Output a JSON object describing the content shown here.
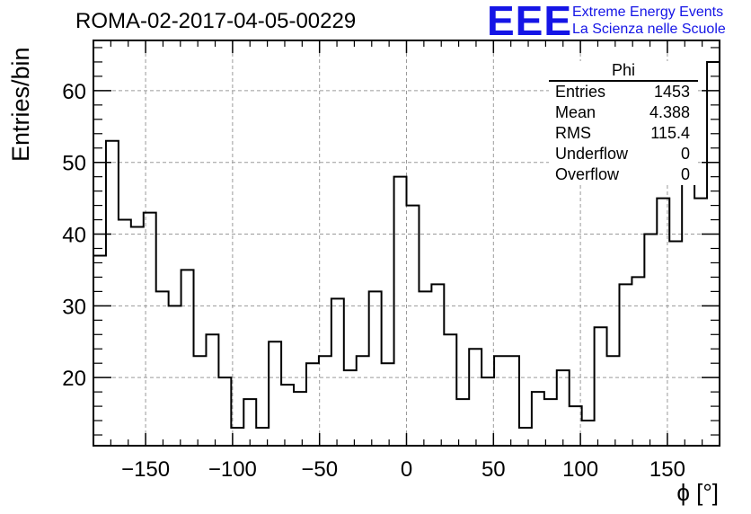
{
  "header": {
    "title": "ROMA-02-2017-04-05-00229",
    "logo_text": "EEE",
    "logo_line1": "Extreme Energy Events",
    "logo_line2": "La Scienza nelle Scuole",
    "accent_color": "#1515e6"
  },
  "stats": {
    "name": "Phi",
    "rows": [
      {
        "label": "Entries",
        "value": "1453"
      },
      {
        "label": "Mean",
        "value": "4.388"
      },
      {
        "label": "RMS",
        "value": "115.4"
      },
      {
        "label": "Underflow",
        "value": "0"
      },
      {
        "label": "Overflow",
        "value": "0"
      }
    ]
  },
  "chart_data": {
    "type": "histogram",
    "title": "ROMA-02-2017-04-05-00229",
    "xlabel": "ϕ [°]",
    "ylabel": "Entries/bin",
    "xlim": [
      -180,
      180
    ],
    "ylim": [
      10.5,
      67
    ],
    "bin_width": 7.2,
    "x_ticks": [
      -150,
      -100,
      -50,
      0,
      50,
      100,
      150
    ],
    "x_tick_labels": [
      "−150",
      "−100",
      "−50",
      "0",
      "50",
      "100",
      "150"
    ],
    "y_ticks": [
      20,
      30,
      40,
      50,
      60
    ],
    "grid": true,
    "values": [
      37,
      53,
      42,
      41,
      43,
      32,
      30,
      35,
      23,
      26,
      20,
      13,
      17,
      13,
      25,
      19,
      18,
      22,
      23,
      31,
      21,
      23,
      32,
      22,
      48,
      44,
      32,
      33,
      26,
      17,
      24,
      20,
      23,
      23,
      13,
      18,
      17,
      21,
      16,
      14,
      27,
      23,
      33,
      34,
      40,
      45,
      39,
      53,
      45,
      64
    ]
  }
}
